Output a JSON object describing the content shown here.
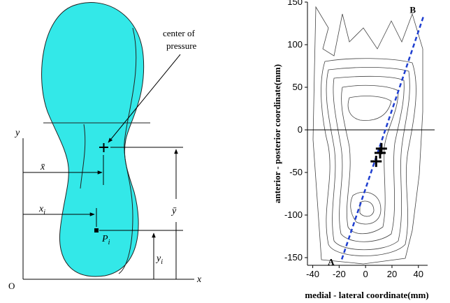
{
  "diagram": {
    "annotation": [
      "center of",
      "pressure"
    ],
    "y_axis": "y",
    "x_axis": "x",
    "origin": "O",
    "x_bar": "x̄",
    "y_bar": "ȳ",
    "x_i": {
      "base": "x",
      "sub": "i"
    },
    "p_i": {
      "base": "P",
      "sub": "i"
    },
    "y_i": {
      "base": "y",
      "sub": "i"
    }
  },
  "chart_data": {
    "type": "contour",
    "xlabel": "medial - lateral coordinate(mm)",
    "ylabel": "anterior - posterior  coordinate(mm)",
    "xlim": [
      -44,
      47
    ],
    "ylim": [
      -159,
      150
    ],
    "xticks": [
      -40,
      -20,
      0,
      20,
      40
    ],
    "yticks": [
      -150,
      -100,
      -50,
      0,
      50,
      100,
      150
    ],
    "line": {
      "labels": [
        "A",
        "B"
      ],
      "color": "#1f3fd0",
      "x": [
        -18,
        44
      ],
      "y": [
        -152,
        134
      ]
    },
    "cop": {
      "color": "#000000",
      "x": [
        12,
        11,
        8
      ],
      "y": [
        -22,
        -27,
        -37
      ]
    }
  }
}
